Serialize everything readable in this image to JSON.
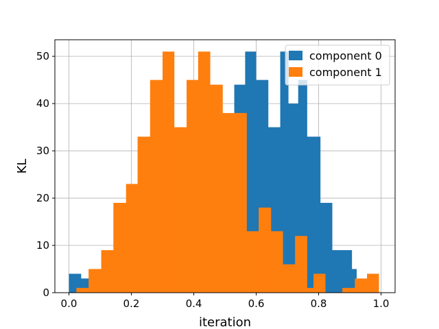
{
  "chart_data": {
    "type": "bar",
    "subtype": "overlaid-histogram",
    "title": "",
    "xlabel": "iteration",
    "ylabel": "KL",
    "xlim": [
      -0.045,
      1.045
    ],
    "ylim": [
      0,
      53.5
    ],
    "xticks": [
      "0.0",
      "0.2",
      "0.4",
      "0.6",
      "0.8",
      "1.0"
    ],
    "yticks": [
      "0",
      "10",
      "20",
      "30",
      "40",
      "50"
    ],
    "grid": true,
    "legend_position": "top-right",
    "series": [
      {
        "name": "component 0",
        "color": "#1f77b4",
        "bins": [
          {
            "x0": 0.0,
            "x1": 0.0384,
            "count": 4
          },
          {
            "x0": 0.0384,
            "x1": 0.0646,
            "count": 3
          },
          {
            "x0": 0.5297,
            "x1": 0.5646,
            "count": 44
          },
          {
            "x0": 0.5646,
            "x1": 0.599,
            "count": 51
          },
          {
            "x0": 0.599,
            "x1": 0.638,
            "count": 45
          },
          {
            "x0": 0.638,
            "x1": 0.677,
            "count": 35
          },
          {
            "x0": 0.677,
            "x1": 0.7025,
            "count": 51
          },
          {
            "x0": 0.7025,
            "x1": 0.7345,
            "count": 40
          },
          {
            "x0": 0.7345,
            "x1": 0.7625,
            "count": 45
          },
          {
            "x0": 0.7625,
            "x1": 0.7835,
            "count": 33
          },
          {
            "x0": 0.7835,
            "x1": 0.805,
            "count": 33
          },
          {
            "x0": 0.805,
            "x1": 0.843,
            "count": 19
          },
          {
            "x0": 0.843,
            "x1": 0.876,
            "count": 9
          },
          {
            "x0": 0.876,
            "x1": 0.906,
            "count": 9
          },
          {
            "x0": 0.906,
            "x1": 0.921,
            "count": 5
          }
        ]
      },
      {
        "name": "component 1",
        "color": "#ff7f0e",
        "bins": [
          {
            "x0": 0.024,
            "x1": 0.063,
            "count": 1
          },
          {
            "x0": 0.063,
            "x1": 0.1035,
            "count": 5
          },
          {
            "x0": 0.1035,
            "x1": 0.1425,
            "count": 9
          },
          {
            "x0": 0.1425,
            "x1": 0.183,
            "count": 19
          },
          {
            "x0": 0.183,
            "x1": 0.22,
            "count": 23
          },
          {
            "x0": 0.22,
            "x1": 0.26,
            "count": 33
          },
          {
            "x0": 0.26,
            "x1": 0.3,
            "count": 45
          },
          {
            "x0": 0.3,
            "x1": 0.337,
            "count": 51
          },
          {
            "x0": 0.337,
            "x1": 0.377,
            "count": 35
          },
          {
            "x0": 0.377,
            "x1": 0.414,
            "count": 45
          },
          {
            "x0": 0.414,
            "x1": 0.452,
            "count": 51
          },
          {
            "x0": 0.452,
            "x1": 0.492,
            "count": 44
          },
          {
            "x0": 0.492,
            "x1": 0.5297,
            "count": 38
          },
          {
            "x0": 0.5297,
            "x1": 0.569,
            "count": 38
          },
          {
            "x0": 0.569,
            "x1": 0.608,
            "count": 13
          },
          {
            "x0": 0.608,
            "x1": 0.647,
            "count": 18
          },
          {
            "x0": 0.647,
            "x1": 0.685,
            "count": 13
          },
          {
            "x0": 0.685,
            "x1": 0.7245,
            "count": 6
          },
          {
            "x0": 0.7245,
            "x1": 0.7625,
            "count": 12
          },
          {
            "x0": 0.7625,
            "x1": 0.7835,
            "count": 1
          },
          {
            "x0": 0.7835,
            "x1": 0.821,
            "count": 4
          },
          {
            "x0": 0.821,
            "x1": 0.876,
            "count": 0
          },
          {
            "x0": 0.876,
            "x1": 0.916,
            "count": 1
          },
          {
            "x0": 0.916,
            "x1": 0.955,
            "count": 3
          },
          {
            "x0": 0.955,
            "x1": 0.9925,
            "count": 4
          }
        ]
      }
    ]
  }
}
